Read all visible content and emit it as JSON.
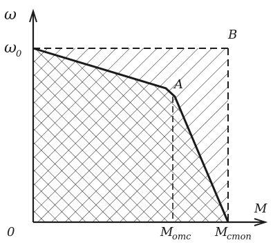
{
  "diagram": {
    "axes": {
      "y_label": "ω",
      "x_label": "M",
      "origin_label": "0"
    },
    "labels": {
      "omega0": "ω",
      "omega0_sub": "0",
      "point_a": "A",
      "point_b": "B",
      "m_otc": "M",
      "m_otc_sub": "отс",
      "m_stop": "M",
      "m_stop_sub": "стоп"
    },
    "colors": {
      "ink": "#1b1b1b",
      "background": "#ffffff"
    }
  }
}
